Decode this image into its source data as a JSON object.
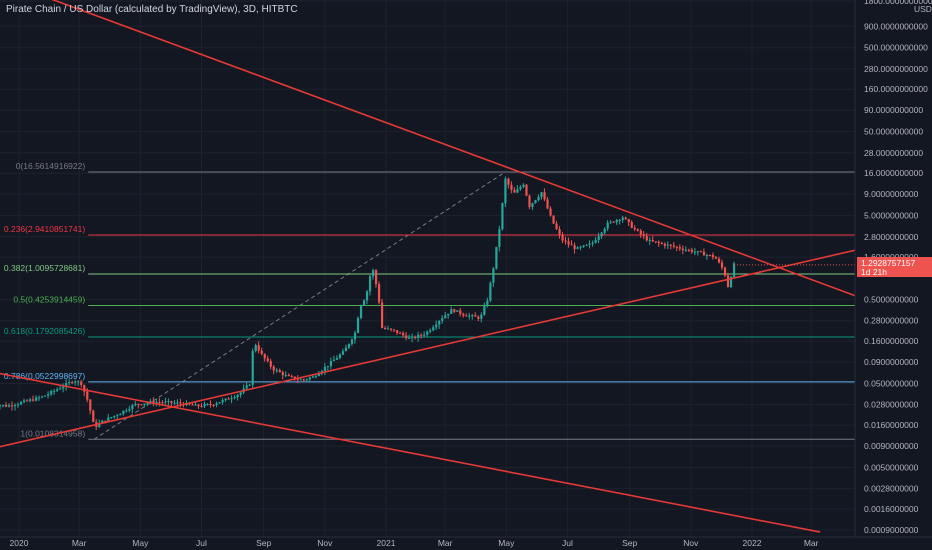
{
  "title": "Pirate Chain / US Dollar (calculated by TradingView), 3D, HITBTC",
  "colors": {
    "background": "#131722",
    "up": "#26a69a",
    "down": "#ef5350",
    "trendline": "#e53935",
    "grid": "#1e222d"
  },
  "current_price": {
    "value": "1.2928757157",
    "countdown": "1d 21h"
  },
  "chart_data": {
    "type": "candlestick",
    "y_scale": "log",
    "ylim": [
      0.00085,
      1800
    ],
    "y_unit_label": "USD",
    "y_ticks": [
      "1800.0000000000",
      "900.0000000000",
      "500.0000000000",
      "280.0000000000",
      "160.0000000000",
      "90.0000000000",
      "50.0000000000",
      "28.0000000000",
      "16.0000000000",
      "9.0000000000",
      "5.0000000000",
      "2.8000000000",
      "1.6000000000",
      "0.5000000000",
      "0.2800000000",
      "0.1600000000",
      "0.0900000000",
      "0.0500000000",
      "0.0280000000",
      "0.0160000000",
      "0.0090000000",
      "0.0050000000",
      "0.0028000000",
      "0.0016000000",
      "0.0009000000"
    ],
    "x_ticks": [
      "2020",
      "Mar",
      "May",
      "Jul",
      "Sep",
      "Nov",
      "2021",
      "Mar",
      "May",
      "Jul",
      "Sep",
      "Nov",
      "2022",
      "Mar"
    ],
    "x_range": [
      "2019-12-01",
      "2022-04-15"
    ],
    "fib_levels": [
      {
        "label": "0(16.5614916922)",
        "ratio": 0,
        "price": 16.5614916922,
        "color": "#787b86"
      },
      {
        "label": "0.236(2.9410851741)",
        "ratio": 0.236,
        "price": 2.9410851741,
        "color": "#f23645"
      },
      {
        "label": "0.382(1.0095728681)",
        "ratio": 0.382,
        "price": 1.0095728681,
        "color": "#81c784"
      },
      {
        "label": "0.5(0.4253914459)",
        "ratio": 0.5,
        "price": 0.4253914459,
        "color": "#4caf50"
      },
      {
        "label": "0.618(0.1792085426)",
        "ratio": 0.618,
        "price": 0.1792085426,
        "color": "#089981"
      },
      {
        "label": "0.786(0.0522998697)",
        "ratio": 0.786,
        "price": 0.0522998697,
        "color": "#64b5f6"
      },
      {
        "label": "1(0.0108314958)",
        "ratio": 1,
        "price": 0.0108314958,
        "color": "#787b86"
      }
    ],
    "trendlines": [
      {
        "name": "descending-resistance",
        "points": [
          [
            "2019-12-01",
            3600
          ],
          [
            "2022-04-15",
            0.55
          ]
        ]
      },
      {
        "name": "ascending-support",
        "points": [
          [
            "2019-12-01",
            0.0082
          ],
          [
            "2022-04-15",
            1.95
          ]
        ]
      },
      {
        "name": "long-descending",
        "points": [
          [
            "2019-12-01",
            0.07
          ],
          [
            "2022-03-10",
            0.00085
          ]
        ]
      }
    ],
    "price_path": [
      [
        "2019-12-01",
        0.029
      ],
      [
        "2019-12-20",
        0.027
      ],
      [
        "2020-01-05",
        0.03
      ],
      [
        "2020-01-25",
        0.035
      ],
      [
        "2020-02-10",
        0.044
      ],
      [
        "2020-02-25",
        0.055
      ],
      [
        "2020-03-03",
        0.05
      ],
      [
        "2020-03-10",
        0.03
      ],
      [
        "2020-03-16",
        0.015
      ],
      [
        "2020-03-25",
        0.018
      ],
      [
        "2020-04-10",
        0.022
      ],
      [
        "2020-04-25",
        0.028
      ],
      [
        "2020-05-10",
        0.03
      ],
      [
        "2020-05-25",
        0.03
      ],
      [
        "2020-06-10",
        0.029
      ],
      [
        "2020-06-25",
        0.027
      ],
      [
        "2020-07-10",
        0.028
      ],
      [
        "2020-07-25",
        0.032
      ],
      [
        "2020-08-08",
        0.038
      ],
      [
        "2020-08-18",
        0.05
      ],
      [
        "2020-08-22",
        0.16
      ],
      [
        "2020-08-30",
        0.11
      ],
      [
        "2020-09-10",
        0.075
      ],
      [
        "2020-09-25",
        0.06
      ],
      [
        "2020-10-10",
        0.055
      ],
      [
        "2020-10-20",
        0.06
      ],
      [
        "2020-11-05",
        0.085
      ],
      [
        "2020-11-20",
        0.12
      ],
      [
        "2020-12-01",
        0.2
      ],
      [
        "2020-12-06",
        0.42
      ],
      [
        "2020-12-12",
        0.55
      ],
      [
        "2020-12-18",
        1.25
      ],
      [
        "2020-12-24",
        0.6
      ],
      [
        "2020-12-28",
        0.23
      ],
      [
        "2021-01-10",
        0.21
      ],
      [
        "2021-01-25",
        0.17
      ],
      [
        "2021-02-10",
        0.2
      ],
      [
        "2021-02-25",
        0.3
      ],
      [
        "2021-03-08",
        0.38
      ],
      [
        "2021-03-20",
        0.33
      ],
      [
        "2021-04-05",
        0.3
      ],
      [
        "2021-04-12",
        0.5
      ],
      [
        "2021-04-18",
        1.2
      ],
      [
        "2021-04-24",
        3.5
      ],
      [
        "2021-04-30",
        13.5
      ],
      [
        "2021-05-08",
        9.0
      ],
      [
        "2021-05-18",
        12.0
      ],
      [
        "2021-05-24",
        6.5
      ],
      [
        "2021-06-05",
        9.5
      ],
      [
        "2021-06-15",
        4.5
      ],
      [
        "2021-06-25",
        2.6
      ],
      [
        "2021-07-10",
        2.0
      ],
      [
        "2021-07-25",
        2.3
      ],
      [
        "2021-08-10",
        4.0
      ],
      [
        "2021-08-25",
        4.8
      ],
      [
        "2021-09-05",
        3.5
      ],
      [
        "2021-09-20",
        2.5
      ],
      [
        "2021-10-10",
        2.2
      ],
      [
        "2021-10-25",
        2.0
      ],
      [
        "2021-11-10",
        1.8
      ],
      [
        "2021-11-25",
        1.6
      ],
      [
        "2021-12-04",
        1.1
      ],
      [
        "2021-12-08",
        0.72
      ],
      [
        "2021-12-14",
        1.3
      ]
    ]
  }
}
